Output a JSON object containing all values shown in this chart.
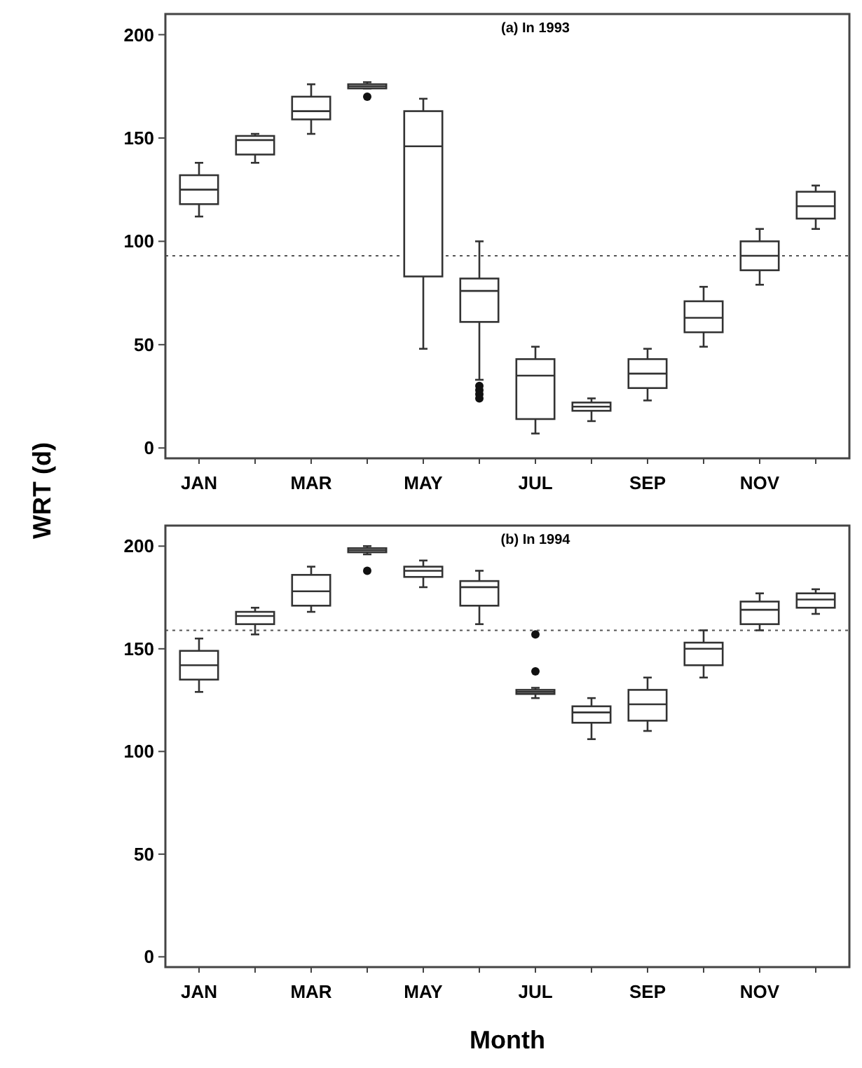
{
  "chart_data": [
    {
      "type": "box",
      "title": "(a) In 1993",
      "ylabel": "WRT (d)",
      "categories": [
        "JAN",
        null,
        "MAR",
        null,
        "MAY",
        null,
        "JUL",
        null,
        "SEP",
        null,
        "NOV",
        null
      ],
      "ylim": [
        -5,
        210
      ],
      "yticks": [
        0,
        50,
        100,
        150,
        200
      ],
      "grid": false,
      "ref_lines": [
        {
          "axis": "y",
          "value": 93,
          "line_style": "dotted"
        }
      ],
      "boxes": [
        {
          "low": 112,
          "q1": 118,
          "median": 125,
          "q3": 132,
          "high": 138
        },
        {
          "low": 138,
          "q1": 142,
          "median": 149,
          "q3": 151,
          "high": 152
        },
        {
          "low": 152,
          "q1": 159,
          "median": 163,
          "q3": 170,
          "high": 176
        },
        {
          "low": 174,
          "q1": 174,
          "median": 175,
          "q3": 176,
          "high": 177,
          "outliers": [
            170
          ]
        },
        {
          "low": 48,
          "q1": 83,
          "median": 146,
          "q3": 163,
          "high": 169
        },
        {
          "low": 33,
          "q1": 61,
          "median": 76,
          "q3": 82,
          "high": 100,
          "outliers": [
            30,
            28,
            26,
            24
          ]
        },
        {
          "low": 7,
          "q1": 14,
          "median": 35,
          "q3": 43,
          "high": 49
        },
        {
          "low": 13,
          "q1": 18,
          "median": 20,
          "q3": 22,
          "high": 24
        },
        {
          "low": 23,
          "q1": 29,
          "median": 36,
          "q3": 43,
          "high": 48
        },
        {
          "low": 49,
          "q1": 56,
          "median": 63,
          "q3": 71,
          "high": 78
        },
        {
          "low": 79,
          "q1": 86,
          "median": 93,
          "q3": 100,
          "high": 106
        },
        {
          "low": 106,
          "q1": 111,
          "median": 117,
          "q3": 124,
          "high": 127
        }
      ]
    },
    {
      "type": "box",
      "title": "(b) In 1994",
      "xlabel": "Month",
      "categories": [
        "JAN",
        null,
        "MAR",
        null,
        "MAY",
        null,
        "JUL",
        null,
        "SEP",
        null,
        "NOV",
        null
      ],
      "ylim": [
        -5,
        210
      ],
      "yticks": [
        0,
        50,
        100,
        150,
        200
      ],
      "grid": false,
      "ref_lines": [
        {
          "axis": "y",
          "value": 159,
          "line_style": "dotted"
        }
      ],
      "boxes": [
        {
          "low": 129,
          "q1": 135,
          "median": 142,
          "q3": 149,
          "high": 155
        },
        {
          "low": 157,
          "q1": 162,
          "median": 166,
          "q3": 168,
          "high": 170
        },
        {
          "low": 168,
          "q1": 171,
          "median": 178,
          "q3": 186,
          "high": 190
        },
        {
          "low": 196,
          "q1": 197,
          "median": 198,
          "q3": 199,
          "high": 200,
          "outliers": [
            188
          ]
        },
        {
          "low": 180,
          "q1": 185,
          "median": 188,
          "q3": 190,
          "high": 193
        },
        {
          "low": 162,
          "q1": 171,
          "median": 180,
          "q3": 183,
          "high": 188
        },
        {
          "low": 126,
          "q1": 128,
          "median": 129,
          "q3": 130,
          "high": 131,
          "outliers": [
            157,
            139
          ]
        },
        {
          "low": 106,
          "q1": 114,
          "median": 119,
          "q3": 122,
          "high": 126
        },
        {
          "low": 110,
          "q1": 115,
          "median": 123,
          "q3": 130,
          "high": 136
        },
        {
          "low": 136,
          "q1": 142,
          "median": 150,
          "q3": 153,
          "high": 159
        },
        {
          "low": 159,
          "q1": 162,
          "median": 169,
          "q3": 173,
          "high": 177
        },
        {
          "low": 167,
          "q1": 170,
          "median": 174,
          "q3": 177,
          "high": 179
        }
      ]
    }
  ]
}
